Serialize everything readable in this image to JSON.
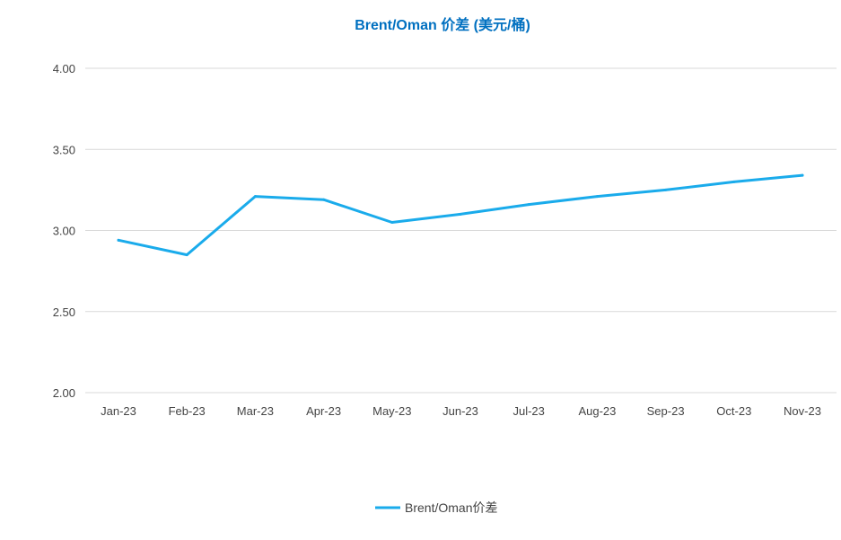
{
  "colors": {
    "title": "#0070c0",
    "series": "#1aabeb",
    "grid": "#d9d9d9",
    "text": "#444444"
  },
  "chart_data": {
    "type": "line",
    "title": "Brent/Oman 价差 (美元/桶)",
    "xlabel": "",
    "ylabel": "",
    "categories": [
      "Jan-23",
      "Feb-23",
      "Mar-23",
      "Apr-23",
      "May-23",
      "Jun-23",
      "Jul-23",
      "Aug-23",
      "Sep-23",
      "Oct-23",
      "Nov-23"
    ],
    "ylim": [
      2.0,
      4.0
    ],
    "yticks": [
      "2.00",
      "2.50",
      "3.00",
      "3.50",
      "4.00"
    ],
    "grid": true,
    "legend_position": "bottom",
    "series": [
      {
        "name": "Brent/Oman价差",
        "values": [
          2.94,
          2.85,
          3.21,
          3.19,
          3.05,
          3.1,
          3.16,
          3.21,
          3.25,
          3.3,
          3.34
        ]
      }
    ]
  }
}
